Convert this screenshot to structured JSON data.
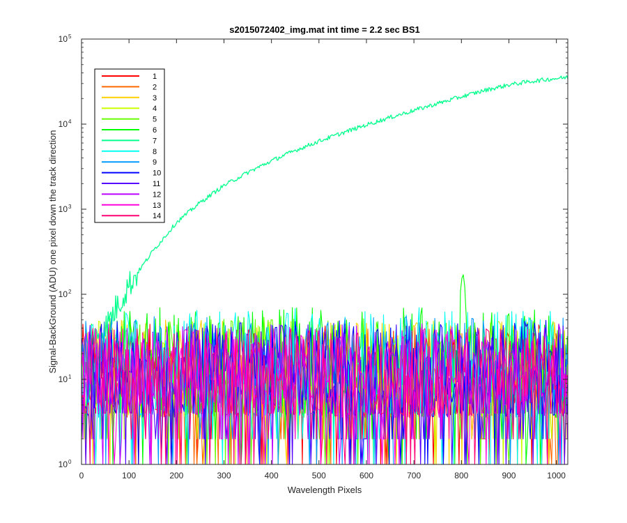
{
  "chart_data": {
    "type": "line",
    "title": "s2015072402_img.mat int time = 2.2 sec   BS1",
    "xlabel": "Wavelength Pixels",
    "ylabel": "Signal-BackGround (ADU) one pixel down the track direction",
    "xlim": [
      0,
      1024
    ],
    "ylim": [
      1,
      100000
    ],
    "yscale": "log",
    "grid": false,
    "legend_position": "top-left",
    "x_ticks": [
      "0",
      "100",
      "200",
      "300",
      "400",
      "500",
      "600",
      "700",
      "800",
      "900",
      "1000"
    ],
    "y_ticks": [
      {
        "base": "10",
        "exp": "0"
      },
      {
        "base": "10",
        "exp": "1"
      },
      {
        "base": "10",
        "exp": "2"
      },
      {
        "base": "10",
        "exp": "3"
      },
      {
        "base": "10",
        "exp": "4"
      },
      {
        "base": "10",
        "exp": "5"
      }
    ],
    "series": [
      {
        "name": "1",
        "color": "#ff0000",
        "kind": "noise",
        "ceiling": 45
      },
      {
        "name": "2",
        "color": "#ff6a00",
        "kind": "noise",
        "ceiling": 45
      },
      {
        "name": "3",
        "color": "#ffd000",
        "kind": "noise",
        "ceiling": 50
      },
      {
        "name": "4",
        "color": "#ccff00",
        "kind": "noise",
        "ceiling": 50
      },
      {
        "name": "5",
        "color": "#66ff00",
        "kind": "noise",
        "ceiling": 55
      },
      {
        "name": "6",
        "color": "#00ff00",
        "kind": "noise",
        "ceiling": 70,
        "peak": {
          "x": 803,
          "y": 185
        }
      },
      {
        "name": "7",
        "color": "#00ff8c",
        "kind": "spectrum",
        "points": [
          [
            0,
            22
          ],
          [
            50,
            40
          ],
          [
            100,
            130
          ],
          [
            150,
            320
          ],
          [
            200,
            700
          ],
          [
            250,
            1200
          ],
          [
            300,
            1900
          ],
          [
            350,
            2700
          ],
          [
            400,
            3700
          ],
          [
            450,
            4900
          ],
          [
            500,
            6300
          ],
          [
            550,
            7900
          ],
          [
            600,
            9800
          ],
          [
            650,
            12000
          ],
          [
            700,
            14500
          ],
          [
            750,
            17500
          ],
          [
            800,
            21000
          ],
          [
            850,
            25000
          ],
          [
            900,
            29000
          ],
          [
            950,
            32000
          ],
          [
            1000,
            34500
          ],
          [
            1024,
            35500
          ]
        ]
      },
      {
        "name": "8",
        "color": "#00fff0",
        "kind": "noise",
        "ceiling": 70
      },
      {
        "name": "9",
        "color": "#0099ff",
        "kind": "noise",
        "ceiling": 55
      },
      {
        "name": "10",
        "color": "#0000ff",
        "kind": "noise",
        "ceiling": 50
      },
      {
        "name": "11",
        "color": "#5500ff",
        "kind": "noise",
        "ceiling": 45
      },
      {
        "name": "12",
        "color": "#bb00ff",
        "kind": "noise",
        "ceiling": 45
      },
      {
        "name": "13",
        "color": "#ff00dd",
        "kind": "noise",
        "ceiling": 40
      },
      {
        "name": "14",
        "color": "#ff0077",
        "kind": "noise",
        "ceiling": 40
      }
    ]
  }
}
